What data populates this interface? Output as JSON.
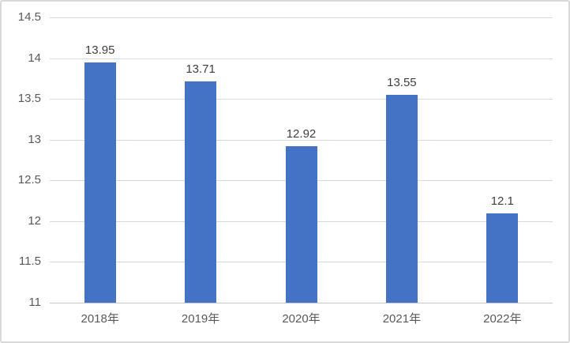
{
  "chart_data": {
    "type": "bar",
    "categories": [
      "2018年",
      "2019年",
      "2020年",
      "2021年",
      "2022年"
    ],
    "values": [
      13.95,
      13.71,
      12.92,
      13.55,
      12.1
    ],
    "value_labels": [
      "13.95",
      "13.71",
      "12.92",
      "13.55",
      "12.1"
    ],
    "title": "",
    "xlabel": "",
    "ylabel": "",
    "ylim": [
      11,
      14.5
    ],
    "ytick_step": 0.5,
    "yticks": [
      "14.5",
      "14",
      "13.5",
      "13",
      "12.5",
      "12",
      "11.5",
      "11"
    ],
    "grid": true,
    "legend": false
  },
  "colors": {
    "bar": "#4472C4",
    "gridline": "#D9D9D9",
    "axis_line": "#C6C6C6",
    "tick_text": "#595959",
    "data_label_text": "#3F3F3F",
    "frame_border": "#D9D9D9",
    "background": "#FFFFFF"
  }
}
